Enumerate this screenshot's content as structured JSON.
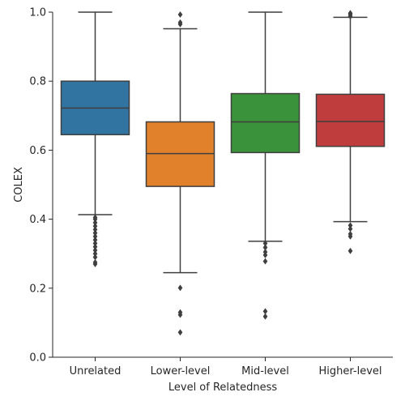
{
  "chart_data": {
    "type": "box",
    "xlabel": "Level of Relatedness",
    "ylabel": "COLEX",
    "ylim": [
      0.0,
      1.0
    ],
    "yticks": [
      0.0,
      0.2,
      0.4,
      0.6,
      0.8,
      1.0
    ],
    "ytick_labels": [
      "0.0",
      "0.2",
      "0.4",
      "0.6",
      "0.8",
      "1.0"
    ],
    "grid": false,
    "legend": "none",
    "categories": [
      "Unrelated",
      "Lower-level",
      "Mid-level",
      "Higher-level"
    ],
    "boxes": [
      {
        "category": "Unrelated",
        "color": "#3274a1",
        "whisker_low": 0.413,
        "q1": 0.645,
        "median": 0.722,
        "q3": 0.8,
        "whisker_high": 1.0,
        "outliers": [
          0.27,
          0.275,
          0.29,
          0.3,
          0.31,
          0.32,
          0.33,
          0.34,
          0.35,
          0.36,
          0.37,
          0.38,
          0.39,
          0.4,
          0.405
        ]
      },
      {
        "category": "Lower-level",
        "color": "#e1812c",
        "whisker_low": 0.245,
        "q1": 0.495,
        "median": 0.59,
        "q3": 0.682,
        "whisker_high": 0.952,
        "outliers": [
          0.072,
          0.123,
          0.13,
          0.201,
          0.965,
          0.97,
          0.993
        ]
      },
      {
        "category": "Mid-level",
        "color": "#3a923a",
        "whisker_low": 0.336,
        "q1": 0.593,
        "median": 0.682,
        "q3": 0.764,
        "whisker_high": 1.0,
        "outliers": [
          0.118,
          0.133,
          0.278,
          0.296,
          0.305,
          0.318,
          0.33
        ]
      },
      {
        "category": "Higher-level",
        "color": "#c03d3e",
        "whisker_low": 0.393,
        "q1": 0.611,
        "median": 0.683,
        "q3": 0.762,
        "whisker_high": 0.985,
        "outliers": [
          0.308,
          0.35,
          0.357,
          0.372,
          0.382,
          0.988,
          0.993,
          0.997
        ]
      }
    ]
  }
}
